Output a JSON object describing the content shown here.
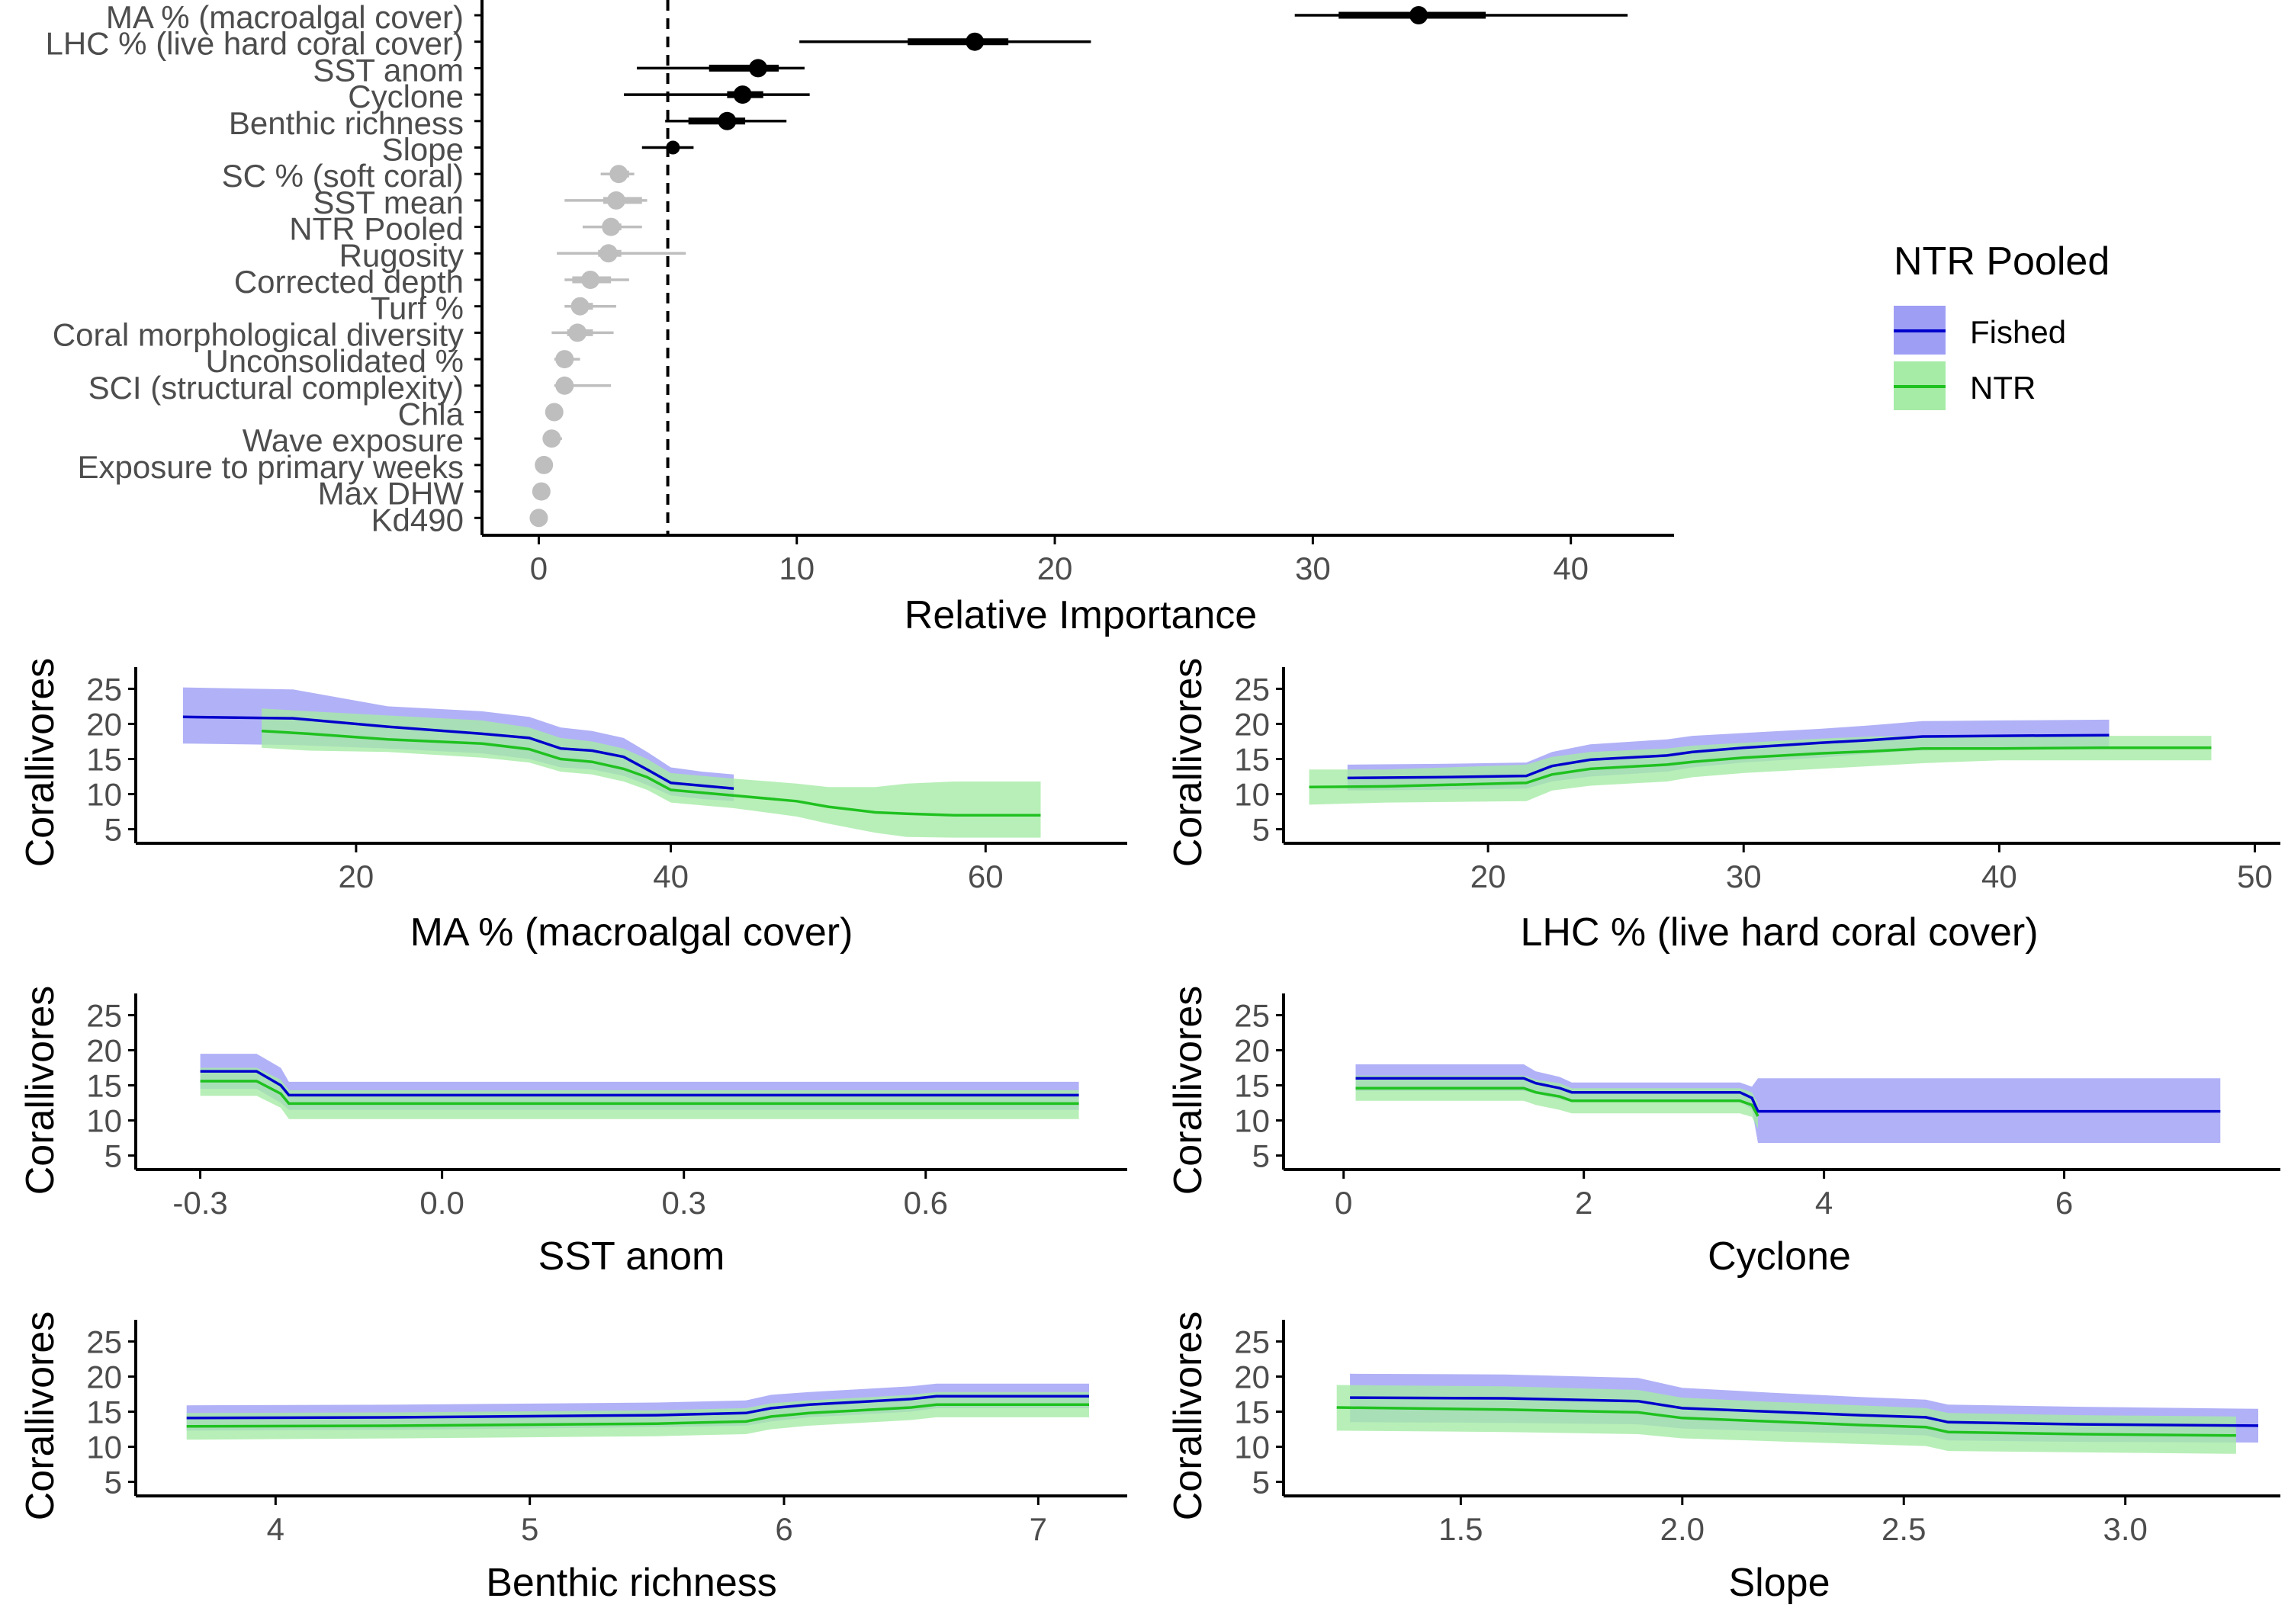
{
  "colors": {
    "fished_line": "#0000CC",
    "fished_band": "#9E9EF5",
    "ntr_line": "#1FC11F",
    "ntr_band": "#A6EBA6",
    "important": "#000000",
    "unimportant": "#BEBEBE",
    "threshold": "#000000"
  },
  "legend": {
    "title": "NTR Pooled",
    "items": [
      "Fished",
      "NTR"
    ]
  },
  "chart_data": [
    {
      "type": "scatter",
      "subtype": "point-range",
      "xlabel": "Relative Importance",
      "ylabel": "",
      "xlim": [
        -2.2,
        44
      ],
      "xticks": [
        0,
        10,
        20,
        30,
        40
      ],
      "threshold": 5,
      "grid": false,
      "variables": [
        {
          "name": "MA % (macroalgal cover)",
          "value": 34.1,
          "inner": [
            31.0,
            36.7
          ],
          "outer": [
            29.3,
            42.2
          ],
          "important": true
        },
        {
          "name": "LHC % (live hard coral cover)",
          "value": 16.9,
          "inner": [
            14.3,
            18.2
          ],
          "outer": [
            10.1,
            21.4
          ],
          "important": true
        },
        {
          "name": "SST anom",
          "value": 8.5,
          "inner": [
            6.6,
            9.3
          ],
          "outer": [
            3.8,
            10.3
          ],
          "important": true
        },
        {
          "name": "Cyclone",
          "value": 7.9,
          "inner": [
            7.3,
            8.7
          ],
          "outer": [
            3.3,
            10.5
          ],
          "important": true
        },
        {
          "name": "Benthic richness",
          "value": 7.3,
          "inner": [
            5.8,
            8.0
          ],
          "outer": [
            4.9,
            9.6
          ],
          "important": true
        },
        {
          "name": "Slope",
          "value": 5.2,
          "inner": [
            5.0,
            5.4
          ],
          "outer": [
            4.0,
            6.0
          ],
          "important": true
        },
        {
          "name": "SC % (soft coral)",
          "value": 3.1,
          "inner": [
            2.9,
            3.5
          ],
          "outer": [
            2.4,
            3.7
          ],
          "important": false
        },
        {
          "name": "SST mean",
          "value": 3.0,
          "inner": [
            2.5,
            4.0
          ],
          "outer": [
            1.0,
            4.2
          ],
          "important": false
        },
        {
          "name": "NTR Pooled",
          "value": 2.8,
          "inner": [
            2.5,
            3.2
          ],
          "outer": [
            1.7,
            4.0
          ],
          "important": false
        },
        {
          "name": "Rugosity",
          "value": 2.7,
          "inner": [
            2.3,
            3.2
          ],
          "outer": [
            0.7,
            5.7
          ],
          "important": false
        },
        {
          "name": "Corrected depth",
          "value": 2.0,
          "inner": [
            1.3,
            2.8
          ],
          "outer": [
            1.0,
            3.5
          ],
          "important": false
        },
        {
          "name": "Turf %",
          "value": 1.6,
          "inner": [
            1.3,
            2.1
          ],
          "outer": [
            1.0,
            3.0
          ],
          "important": false
        },
        {
          "name": "Coral morphological diversity",
          "value": 1.5,
          "inner": [
            1.1,
            2.1
          ],
          "outer": [
            0.5,
            2.9
          ],
          "important": false
        },
        {
          "name": "Unconsolidated %",
          "value": 1.0,
          "inner": [
            0.8,
            1.2
          ],
          "outer": [
            0.6,
            1.6
          ],
          "important": false
        },
        {
          "name": "SCI (structural complexity)",
          "value": 1.0,
          "inner": [
            0.8,
            1.3
          ],
          "outer": [
            0.6,
            2.8
          ],
          "important": false
        },
        {
          "name": "Chla",
          "value": 0.6,
          "inner": [
            0.5,
            0.7
          ],
          "outer": [
            0.4,
            0.9
          ],
          "important": false
        },
        {
          "name": "Wave exposure",
          "value": 0.5,
          "inner": [
            0.4,
            0.7
          ],
          "outer": [
            0.3,
            0.9
          ],
          "important": false
        },
        {
          "name": "Exposure to primary weeks",
          "value": 0.2,
          "inner": [
            0.1,
            0.3
          ],
          "outer": [
            0.0,
            0.4
          ],
          "important": false
        },
        {
          "name": "Max DHW",
          "value": 0.1,
          "inner": [
            0.05,
            0.15
          ],
          "outer": [
            0.0,
            0.3
          ],
          "important": false
        },
        {
          "name": "Kd490",
          "value": 0.0,
          "inner": [
            0.0,
            0.05
          ],
          "outer": [
            0.0,
            0.2
          ],
          "important": false
        }
      ]
    },
    {
      "type": "line",
      "xlabel": "MA % (macroalgal cover)",
      "ylabel": "Corallivores",
      "xlim": [
        6,
        69
      ],
      "ylim": [
        3,
        27
      ],
      "xticks": [
        20,
        40,
        60
      ],
      "yticks": [
        5,
        10,
        15,
        20,
        25
      ],
      "series": [
        {
          "name": "Fished",
          "x": [
            9,
            16,
            22,
            28,
            31,
            33,
            35,
            37,
            38.5,
            40,
            42,
            44
          ],
          "y": [
            21,
            20.8,
            19.6,
            18.6,
            18,
            16.5,
            16.2,
            15.3,
            13.5,
            11.6,
            11.2,
            10.8
          ],
          "lower": [
            17.2,
            17.0,
            16.5,
            15.8,
            15.0,
            13.8,
            13.5,
            12.6,
            11.3,
            9.8,
            9.3,
            9.0
          ],
          "upper": [
            25.2,
            24.9,
            22.5,
            21.8,
            21.0,
            19.5,
            19.0,
            18.0,
            16.0,
            13.8,
            13.2,
            12.8
          ]
        },
        {
          "name": "NTR",
          "x": [
            14,
            17,
            22,
            28,
            31,
            33,
            35,
            37,
            38.5,
            40,
            44,
            48,
            50,
            53,
            55,
            58,
            60,
            63.5
          ],
          "y": [
            19,
            18.6,
            17.8,
            17.2,
            16.4,
            15,
            14.6,
            13.6,
            12.4,
            10.6,
            9.8,
            9,
            8.2,
            7.4,
            7.2,
            7,
            7,
            7
          ],
          "lower": [
            16.6,
            16.2,
            16.0,
            15.2,
            14.5,
            13.2,
            12.8,
            11.8,
            10.6,
            8.8,
            8.0,
            6.8,
            5.8,
            4.5,
            3.9,
            3.8,
            3.8,
            3.8
          ],
          "upper": [
            22.2,
            21.8,
            21.2,
            20.5,
            19.5,
            18.0,
            17.5,
            16.5,
            15.0,
            13.0,
            12.2,
            11.5,
            11.0,
            11.0,
            11.5,
            11.8,
            11.8,
            11.8
          ]
        }
      ]
    },
    {
      "type": "line",
      "xlabel": "LHC % (live hard coral cover)",
      "ylabel": "Corallivores",
      "xlim": [
        12,
        51
      ],
      "ylim": [
        3,
        27
      ],
      "xticks": [
        20,
        30,
        40,
        50
      ],
      "yticks": [
        5,
        10,
        15,
        20,
        25
      ],
      "series": [
        {
          "name": "Fished",
          "x": [
            14.5,
            18,
            21.5,
            22.5,
            24,
            27,
            28,
            30,
            33,
            35,
            37,
            40,
            44.3
          ],
          "y": [
            12.3,
            12.4,
            12.6,
            14,
            14.9,
            15.5,
            16,
            16.6,
            17.3,
            17.7,
            18.2,
            18.3,
            18.4
          ],
          "lower": [
            10.5,
            10.6,
            10.8,
            11.8,
            12.5,
            13.2,
            13.8,
            14.5,
            15.2,
            15.8,
            16.2,
            16.5,
            16.8
          ],
          "upper": [
            14.2,
            14.3,
            14.5,
            16.0,
            17.1,
            17.8,
            18.3,
            18.7,
            19.3,
            19.8,
            20.4,
            20.5,
            20.6
          ]
        },
        {
          "name": "NTR",
          "x": [
            13,
            16,
            21.5,
            22.5,
            24,
            27,
            28,
            30,
            33,
            35,
            37,
            40,
            44,
            48.3
          ],
          "y": [
            11,
            11.1,
            11.6,
            12.8,
            13.6,
            14.2,
            14.6,
            15.2,
            15.8,
            16.1,
            16.5,
            16.5,
            16.6,
            16.6
          ],
          "lower": [
            8.5,
            8.8,
            9.0,
            10.5,
            11.2,
            11.8,
            12.4,
            13.0,
            13.6,
            14.0,
            14.4,
            14.8,
            14.8,
            14.8
          ],
          "upper": [
            13.5,
            13.5,
            14.2,
            15.3,
            16.0,
            16.5,
            16.9,
            17.3,
            17.9,
            18.2,
            18.3,
            18.3,
            18.3,
            18.3
          ]
        }
      ]
    },
    {
      "type": "line",
      "xlabel": "SST anom",
      "ylabel": "Corallivores",
      "xlim": [
        -0.38,
        0.85
      ],
      "ylim": [
        3,
        27
      ],
      "xticks": [
        -0.3,
        0.0,
        0.3,
        0.6
      ],
      "xticklabels": [
        "-0.3",
        "0.0",
        "0.3",
        "0.6"
      ],
      "yticks": [
        5,
        10,
        15,
        20,
        25
      ],
      "series": [
        {
          "name": "Fished",
          "x": [
            -0.3,
            -0.23,
            -0.2,
            -0.19,
            0.3,
            0.79
          ],
          "y": [
            17,
            17,
            15,
            13.6,
            13.6,
            13.6
          ],
          "lower": [
            14.5,
            14.5,
            12.5,
            11.5,
            11.5,
            11.5
          ],
          "upper": [
            19.5,
            19.5,
            17.5,
            15.5,
            15.5,
            15.5
          ]
        },
        {
          "name": "NTR",
          "x": [
            -0.3,
            -0.23,
            -0.2,
            -0.19,
            0.3,
            0.79
          ],
          "y": [
            15.6,
            15.6,
            13.8,
            12.4,
            12.4,
            12.4
          ],
          "lower": [
            13.5,
            13.5,
            11.8,
            10.2,
            10.2,
            10.2
          ],
          "upper": [
            17.5,
            17.5,
            15.8,
            14.3,
            14.3,
            14.3
          ]
        }
      ]
    },
    {
      "type": "line",
      "xlabel": "Cyclone",
      "ylabel": "Corallivores",
      "xlim": [
        -0.5,
        7.8
      ],
      "ylim": [
        3,
        27
      ],
      "xticks": [
        0,
        2,
        4,
        6
      ],
      "yticks": [
        5,
        10,
        15,
        20,
        25
      ],
      "series": [
        {
          "name": "Fished",
          "x": [
            0.1,
            1.5,
            1.6,
            1.8,
            1.9,
            3.3,
            3.4,
            3.45,
            7.3
          ],
          "y": [
            16,
            16,
            15.3,
            14.6,
            14,
            14,
            13.2,
            11.3,
            11.3
          ],
          "lower": [
            14.2,
            14.2,
            13.8,
            13.0,
            12.6,
            12.6,
            11.6,
            6.8,
            6.8
          ],
          "upper": [
            18,
            18,
            17.0,
            16.2,
            15.4,
            15.4,
            14.8,
            16.0,
            16.0
          ]
        },
        {
          "name": "NTR",
          "x": [
            0.1,
            1.5,
            1.6,
            1.8,
            1.9,
            3.3,
            3.4,
            3.45
          ],
          "y": [
            14.6,
            14.6,
            14.0,
            13.4,
            12.8,
            12.8,
            12.2,
            10.6
          ],
          "lower": [
            12.8,
            12.8,
            12.2,
            11.5,
            11.0,
            11.0,
            10.5,
            8.8
          ],
          "upper": [
            16.4,
            16.4,
            15.8,
            15.3,
            14.6,
            14.6,
            14.0,
            12.4
          ]
        }
      ]
    },
    {
      "type": "line",
      "xlabel": "Benthic richness",
      "ylabel": "Corallivores",
      "xlim": [
        3.45,
        7.35
      ],
      "ylim": [
        3,
        27
      ],
      "xticks": [
        4,
        5,
        6,
        7
      ],
      "yticks": [
        5,
        10,
        15,
        20,
        25
      ],
      "series": [
        {
          "name": "Fished",
          "x": [
            3.65,
            4.5,
            5.5,
            5.85,
            5.95,
            6.1,
            6.3,
            6.5,
            6.6,
            7.2
          ],
          "y": [
            14.1,
            14.2,
            14.5,
            14.8,
            15.5,
            16,
            16.4,
            16.8,
            17.2,
            17.2
          ],
          "lower": [
            12.3,
            12.4,
            12.8,
            13.0,
            13.6,
            14.2,
            14.6,
            15.0,
            15.5,
            15.5
          ],
          "upper": [
            15.9,
            16.0,
            16.3,
            16.6,
            17.4,
            17.8,
            18.2,
            18.6,
            19.0,
            19.0
          ]
        },
        {
          "name": "NTR",
          "x": [
            3.65,
            4.5,
            5.5,
            5.85,
            5.95,
            6.1,
            6.3,
            6.5,
            6.6,
            7.2
          ],
          "y": [
            12.9,
            13,
            13.3,
            13.6,
            14.3,
            14.8,
            15.2,
            15.6,
            16,
            16
          ],
          "lower": [
            11.0,
            11.2,
            11.5,
            11.8,
            12.5,
            13.0,
            13.4,
            13.8,
            14.2,
            14.2
          ],
          "upper": [
            14.8,
            14.9,
            15.2,
            15.5,
            16.2,
            16.6,
            17.0,
            17.4,
            17.8,
            17.8
          ]
        }
      ]
    },
    {
      "type": "line",
      "xlabel": "Slope",
      "ylabel": "Corallivores",
      "xlim": [
        1.1,
        3.35
      ],
      "ylim": [
        3,
        27
      ],
      "xticks": [
        1.5,
        2.0,
        2.5,
        3.0
      ],
      "xticklabels": [
        "1.5",
        "2.0",
        "2.5",
        "3.0"
      ],
      "yticks": [
        5,
        10,
        15,
        20,
        25
      ],
      "series": [
        {
          "name": "Fished",
          "x": [
            1.25,
            1.6,
            1.9,
            2.0,
            2.2,
            2.4,
            2.55,
            2.6,
            2.9,
            3.3
          ],
          "y": [
            17,
            16.9,
            16.5,
            15.5,
            15,
            14.5,
            14.2,
            13.5,
            13.2,
            13
          ],
          "lower": [
            13.5,
            13.4,
            13.2,
            12.6,
            12.2,
            11.9,
            11.6,
            10.9,
            10.7,
            10.6
          ],
          "upper": [
            20.4,
            20.3,
            19.8,
            18.4,
            17.7,
            17.1,
            16.7,
            16.0,
            15.7,
            15.4
          ]
        },
        {
          "name": "NTR",
          "x": [
            1.22,
            1.6,
            1.9,
            2.0,
            2.2,
            2.4,
            2.55,
            2.6,
            2.9,
            3.25
          ],
          "y": [
            15.6,
            15.3,
            14.9,
            14.1,
            13.6,
            13.1,
            12.8,
            12.1,
            11.8,
            11.6
          ],
          "lower": [
            12.3,
            12.1,
            11.8,
            11.2,
            10.8,
            10.4,
            10.1,
            9.4,
            9.2,
            9.0
          ],
          "upper": [
            18.8,
            18.6,
            18.1,
            17.0,
            16.4,
            15.9,
            15.5,
            14.8,
            14.5,
            14.3
          ]
        }
      ]
    }
  ]
}
